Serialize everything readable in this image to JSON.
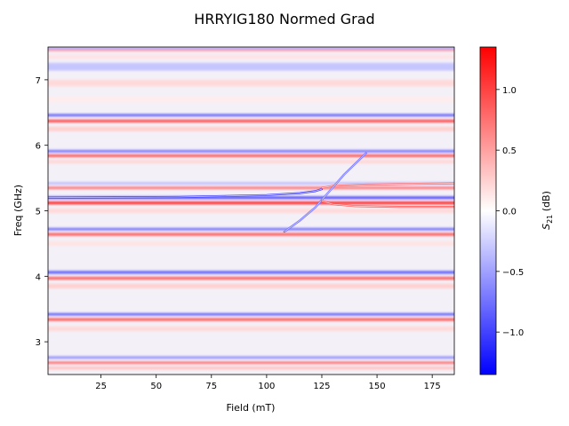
{
  "chart_data": {
    "type": "heatmap",
    "title": "HRRYIG180 Normed Grad",
    "xlabel": "Field (mT)",
    "ylabel": "Freq (GHz)",
    "xlim": [
      1,
      185
    ],
    "ylim": [
      2.5,
      7.5
    ],
    "x_ticks": [
      25,
      50,
      75,
      100,
      125,
      150,
      175
    ],
    "y_ticks": [
      3,
      4,
      5,
      6,
      7
    ],
    "colormap": "bwr",
    "colorbar": {
      "label_main": "S",
      "label_sub": "21",
      "label_unit": " (dB)",
      "vmin": -1.35,
      "vmax": 1.35,
      "ticks": [
        -1.0,
        -0.5,
        0.0,
        0.5,
        1.0
      ],
      "tick_labels": [
        "−1.0",
        "−0.5",
        "0.0",
        "0.5",
        "1.0"
      ]
    },
    "bands": [
      {
        "freq": 7.48,
        "value": -0.5,
        "width": 0.03
      },
      {
        "freq": 7.45,
        "value": 0.5,
        "width": 0.03
      },
      {
        "freq": 7.35,
        "value": 0.15,
        "width": 0.06
      },
      {
        "freq": 7.2,
        "value": -0.3,
        "width": 0.12
      },
      {
        "freq": 6.95,
        "value": 0.2,
        "width": 0.1
      },
      {
        "freq": 6.7,
        "value": 0.1,
        "width": 0.08
      },
      {
        "freq": 6.46,
        "value": -1.0,
        "width": 0.03
      },
      {
        "freq": 6.37,
        "value": 1.0,
        "width": 0.04
      },
      {
        "freq": 6.25,
        "value": 0.25,
        "width": 0.07
      },
      {
        "freq": 5.91,
        "value": -0.9,
        "width": 0.03
      },
      {
        "freq": 5.84,
        "value": 1.0,
        "width": 0.035
      },
      {
        "freq": 5.75,
        "value": 0.2,
        "width": 0.06
      },
      {
        "freq": 5.42,
        "value": -0.4,
        "width": 0.03
      },
      {
        "freq": 5.35,
        "value": 0.8,
        "width": 0.035
      },
      {
        "freq": 5.2,
        "value": -1.2,
        "width": 0.03
      },
      {
        "freq": 5.12,
        "value": 1.2,
        "width": 0.04
      },
      {
        "freq": 5.0,
        "value": 0.2,
        "width": 0.07
      },
      {
        "freq": 4.72,
        "value": -0.9,
        "width": 0.03
      },
      {
        "freq": 4.64,
        "value": 0.9,
        "width": 0.04
      },
      {
        "freq": 4.5,
        "value": 0.15,
        "width": 0.07
      },
      {
        "freq": 4.06,
        "value": -0.9,
        "width": 0.04
      },
      {
        "freq": 3.97,
        "value": 0.9,
        "width": 0.04
      },
      {
        "freq": 3.85,
        "value": 0.25,
        "width": 0.07
      },
      {
        "freq": 3.42,
        "value": -1.0,
        "width": 0.03
      },
      {
        "freq": 3.34,
        "value": 0.9,
        "width": 0.04
      },
      {
        "freq": 3.2,
        "value": 0.2,
        "width": 0.07
      },
      {
        "freq": 2.76,
        "value": -0.7,
        "width": 0.03
      },
      {
        "freq": 2.68,
        "value": 0.9,
        "width": 0.03
      },
      {
        "freq": 2.6,
        "value": 0.3,
        "width": 0.05
      }
    ],
    "anticrossing": {
      "center_field": 125,
      "center_freq": 5.3,
      "branches": [
        {
          "field": [
            1,
            60,
            100,
            115,
            122,
            125
          ],
          "freq": [
            5.2,
            5.21,
            5.24,
            5.27,
            5.3,
            5.33
          ],
          "value": -1.0
        },
        {
          "field": [
            125,
            130,
            145,
            165,
            185
          ],
          "freq": [
            5.35,
            5.38,
            5.4,
            5.41,
            5.42
          ],
          "value": 0.8
        },
        {
          "field": [
            108,
            115,
            122,
            128,
            135,
            145
          ],
          "freq": [
            4.68,
            4.85,
            5.05,
            5.28,
            5.55,
            5.88
          ],
          "value": -0.8
        },
        {
          "field": [
            125,
            130,
            140,
            160,
            185
          ],
          "freq": [
            5.15,
            5.1,
            5.07,
            5.06,
            5.06
          ],
          "value": 0.9
        }
      ]
    }
  }
}
